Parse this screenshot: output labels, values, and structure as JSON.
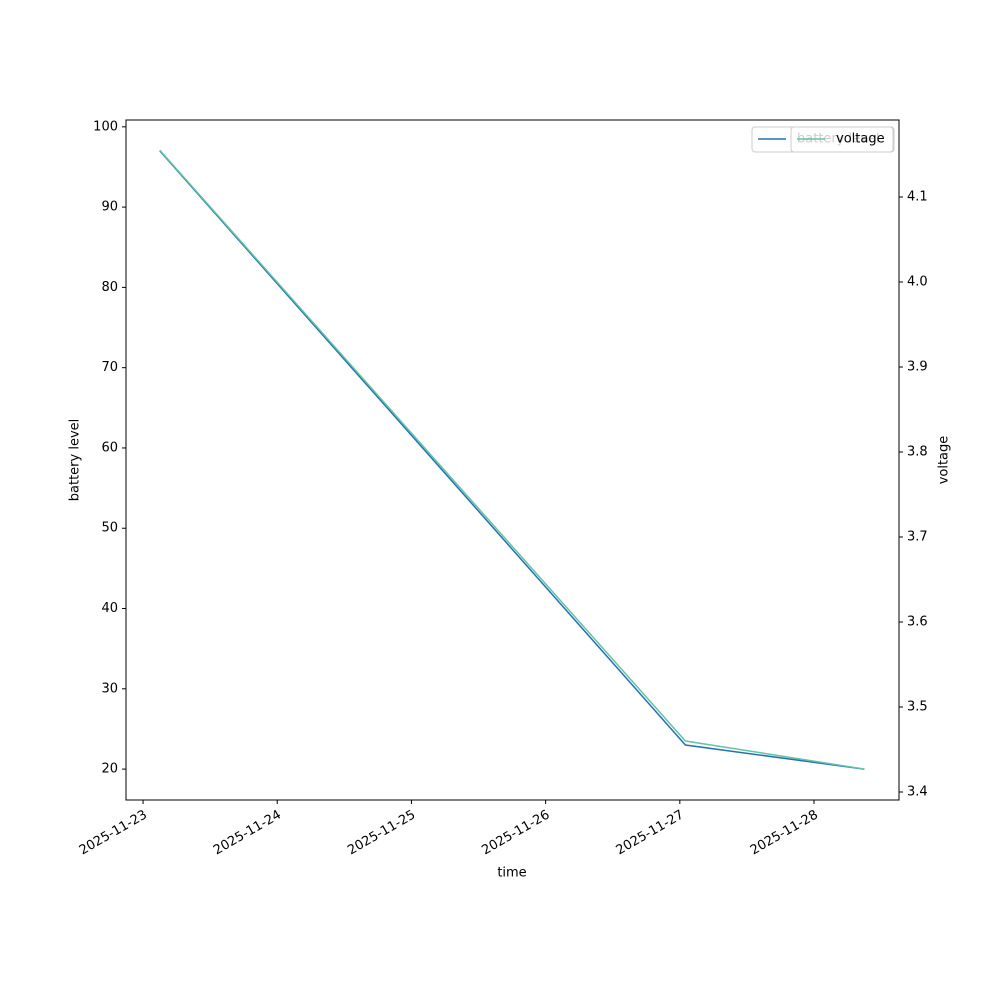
{
  "chart_data": {
    "type": "line",
    "x_label": "time",
    "y_label": "battery level",
    "y2_label": "voltage",
    "x": [
      "2025-11-23T03:00",
      "2025-11-27T01:00",
      "2025-11-28T09:00"
    ],
    "series": [
      {
        "name": "battery level",
        "color": "#2171b5",
        "values": [
          97,
          23,
          20
        ]
      },
      {
        "name": "voltage",
        "color": "#66c2a4",
        "axis": "y2",
        "values": [
          4.155,
          3.46,
          3.427
        ]
      }
    ],
    "xlim": [
      "2025-11-22T20:57",
      "2025-11-28T15:12"
    ],
    "xticks": [
      "2025-11-23",
      "2025-11-24",
      "2025-11-25",
      "2025-11-26",
      "2025-11-27",
      "2025-11-28"
    ],
    "ylim": [
      16.15,
      100.85
    ],
    "yticks": [
      20,
      30,
      40,
      50,
      60,
      70,
      80,
      90,
      100
    ],
    "y2lim": [
      3.3906,
      4.1906
    ],
    "y2ticks": [
      {
        "value": 3.4,
        "label": "3.4"
      },
      3.5,
      3.6,
      3.7,
      3.8,
      3.9,
      {
        "value": 4.0,
        "label": "4.0"
      },
      4.1
    ],
    "legend": "upper right",
    "grid": false
  }
}
